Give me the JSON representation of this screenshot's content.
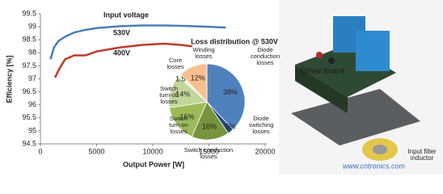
{
  "chart_data": [
    {
      "type": "line",
      "annotation": "Input voltage",
      "x_label": "Output Power [W]",
      "y_label": "Efficiency [%]",
      "series": [
        {
          "name": "530V",
          "color": "#4a7ebb",
          "x": [
            900,
            1200,
            1600,
            2200,
            3000,
            4000,
            5000,
            7000,
            9000,
            11000,
            13000,
            15000,
            16500
          ],
          "values": [
            97.75,
            98.2,
            98.45,
            98.62,
            98.78,
            98.88,
            98.95,
            99.02,
            99.05,
            99.05,
            99.03,
            99.0,
            98.97
          ]
        },
        {
          "name": "400V",
          "color": "#c0392b",
          "x": [
            1300,
            1700,
            2200,
            3000,
            4000,
            5000,
            7000,
            9000,
            11000,
            12500,
            13500
          ],
          "values": [
            97.05,
            97.4,
            97.75,
            97.9,
            97.9,
            98.05,
            98.2,
            98.3,
            98.35,
            98.3,
            98.25
          ]
        }
      ],
      "xlim": [
        0,
        20000
      ],
      "xticks": [
        0,
        5000,
        10000,
        15000,
        20000
      ],
      "ylim": [
        94.5,
        99.5
      ],
      "yticks": [
        94.5,
        95,
        95.5,
        96,
        96.5,
        97,
        97.5,
        98,
        98.5,
        99,
        99.5
      ]
    },
    {
      "type": "pie",
      "title": "Loss distribution @ 530V",
      "categories": [
        "Diode conduction losses",
        "Diode switching losses",
        "Switch conduction losses",
        "Switch turn-on losses",
        "Switch turn-off losses",
        "Core losses",
        "Winding losses"
      ],
      "values": [
        38,
        2.5,
        16,
        16,
        14,
        1.5,
        12
      ],
      "value_labels": [
        "38%",
        "2.5%",
        "16%",
        "16%",
        "14%",
        "1.5%",
        "12%"
      ],
      "colors": [
        "#4f81bd",
        "#1f497d",
        "#77933c",
        "#9bbb59",
        "#c3d69b",
        "#ebf1de",
        "#fabf8f"
      ]
    }
  ],
  "photo": {
    "labels": [
      "Driver board",
      "Input filter inductor"
    ],
    "watermark": "www.cntronics.com"
  }
}
